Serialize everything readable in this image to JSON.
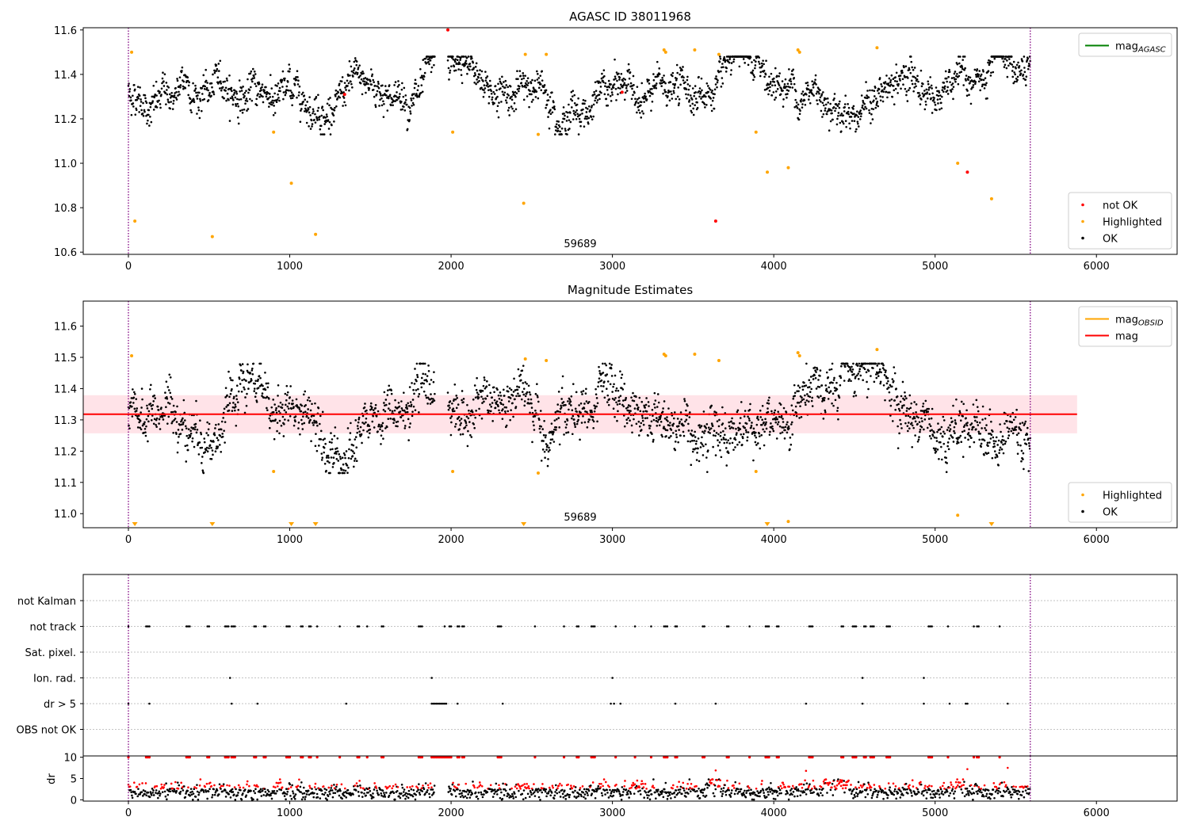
{
  "chart_data": [
    {
      "id": "panel1",
      "type": "scatter",
      "title": "AGASC ID 38011968",
      "x_ticks": [
        0,
        1000,
        2000,
        3000,
        4000,
        5000,
        6000
      ],
      "y_ticks": [
        "10.6",
        "10.8",
        "11.0",
        "11.2",
        "11.4",
        "11.6"
      ],
      "xlim": [
        -280,
        6500
      ],
      "ylim": [
        10.59,
        11.61
      ],
      "annotation": "59689",
      "annotation_x": 2800,
      "vlines": [
        0,
        5590
      ],
      "vline_color": "#800080",
      "top_legend": [
        {
          "label": "mag",
          "sub": "AGASC",
          "color": "#008000"
        }
      ],
      "bottom_legend": [
        {
          "label": "not OK",
          "color": "#ff0000"
        },
        {
          "label": "Highlighted",
          "color": "#ffa500"
        },
        {
          "label": "OK",
          "color": "#000000"
        }
      ],
      "ok_series": {
        "mean": 11.32,
        "spread": 0.08,
        "x_range": [
          0,
          5590
        ],
        "gap": [
          1900,
          1980
        ]
      },
      "highlighted_points": [
        [
          20,
          11.5
        ],
        [
          40,
          10.74
        ],
        [
          520,
          10.67
        ],
        [
          900,
          11.14
        ],
        [
          1010,
          10.91
        ],
        [
          1160,
          10.68
        ],
        [
          2010,
          11.14
        ],
        [
          2450,
          10.82
        ],
        [
          2460,
          11.49
        ],
        [
          2540,
          11.13
        ],
        [
          2590,
          11.49
        ],
        [
          3320,
          11.51
        ],
        [
          3330,
          11.5
        ],
        [
          3510,
          11.51
        ],
        [
          3660,
          11.49
        ],
        [
          3890,
          11.14
        ],
        [
          3960,
          10.96
        ],
        [
          4090,
          10.98
        ],
        [
          4150,
          11.51
        ],
        [
          4160,
          11.5
        ],
        [
          4640,
          11.52
        ],
        [
          5140,
          11.0
        ],
        [
          5350,
          10.84
        ]
      ],
      "not_ok_points": [
        [
          1980,
          11.6
        ],
        [
          1340,
          11.31
        ],
        [
          3060,
          11.32
        ],
        [
          3640,
          10.74
        ],
        [
          5200,
          10.96
        ]
      ]
    },
    {
      "id": "panel2",
      "type": "scatter",
      "title": "Magnitude Estimates",
      "x_ticks": [
        0,
        1000,
        2000,
        3000,
        4000,
        5000,
        6000
      ],
      "y_ticks": [
        "11.0",
        "11.1",
        "11.2",
        "11.3",
        "11.4",
        "11.5",
        "11.6"
      ],
      "xlim": [
        -280,
        6500
      ],
      "ylim": [
        10.955,
        11.68
      ],
      "annotation": "59689",
      "annotation_x": 2800,
      "vlines": [
        0,
        5590
      ],
      "vline_color": "#800080",
      "mag_line": {
        "value": 11.318,
        "color": "#ff0000",
        "x_range": [
          -280,
          5880
        ]
      },
      "band": {
        "low": 11.257,
        "high": 11.379,
        "color": "#ffc0cb",
        "x_range": [
          -280,
          5880
        ]
      },
      "top_legend": [
        {
          "label": "mag",
          "sub": "OBSID",
          "color": "#ffa500"
        },
        {
          "label": "mag",
          "sub": "",
          "color": "#ff0000"
        }
      ],
      "bottom_legend": [
        {
          "label": "Highlighted",
          "color": "#ffa500"
        },
        {
          "label": "OK",
          "color": "#000000"
        }
      ],
      "ok_series": {
        "mean": 11.32,
        "spread": 0.08,
        "x_range": [
          0,
          5590
        ],
        "gap": [
          1900,
          1980
        ]
      },
      "highlighted_points": [
        [
          20,
          11.505
        ],
        [
          900,
          11.135
        ],
        [
          2010,
          11.135
        ],
        [
          2460,
          11.495
        ],
        [
          2540,
          11.13
        ],
        [
          2590,
          11.49
        ],
        [
          3320,
          11.51
        ],
        [
          3330,
          11.505
        ],
        [
          3510,
          11.51
        ],
        [
          3660,
          11.49
        ],
        [
          3890,
          11.135
        ],
        [
          4090,
          10.975
        ],
        [
          4150,
          11.515
        ],
        [
          4160,
          11.505
        ],
        [
          4640,
          11.525
        ],
        [
          5140,
          10.995
        ]
      ],
      "off_scale_markers": [
        40,
        520,
        1010,
        1160,
        2450,
        3960,
        5350
      ]
    },
    {
      "id": "panel3",
      "type": "scatter",
      "x_ticks": [
        0,
        1000,
        2000,
        3000,
        4000,
        5000,
        6000
      ],
      "categories": [
        "not Kalman",
        "not track",
        "Sat. pixel.",
        "Ion. rad.",
        "dr > 5",
        "OBS not OK"
      ],
      "xlim": [
        -280,
        6500
      ],
      "vlines": [
        0,
        5590
      ],
      "vline_color": "#800080",
      "flags": {
        "not track": [
          0,
          110,
          120,
          130,
          360,
          370,
          380,
          490,
          500,
          600,
          610,
          620,
          640,
          650,
          660,
          780,
          790,
          840,
          850,
          980,
          990,
          1000,
          1070,
          1080,
          1120,
          1130,
          1170,
          1310,
          1420,
          1430,
          1480,
          1570,
          1580,
          1800,
          1810,
          1820,
          1960,
          1990,
          2000,
          2040,
          2050,
          2070,
          2080,
          2290,
          2300,
          2310,
          2520,
          2700,
          2780,
          2790,
          2870,
          2880,
          2890,
          3020,
          3140,
          3240,
          3320,
          3330,
          3340,
          3390,
          3400,
          3560,
          3570,
          3710,
          3720,
          3850,
          3950,
          3960,
          3970,
          4020,
          4030,
          4220,
          4230,
          4240,
          4420,
          4430,
          4490,
          4500,
          4510,
          4560,
          4570,
          4600,
          4610,
          4620,
          4700,
          4710,
          4720,
          4960,
          4970,
          4980,
          5080,
          5240,
          5260,
          5270,
          5400
        ],
        "Ion. rad.": [
          630,
          1880,
          3000,
          4550,
          4930
        ],
        "dr > 5": [
          0,
          130,
          640,
          800,
          1350,
          1880,
          1890,
          1900,
          1910,
          1920,
          1930,
          1940,
          1950,
          1960,
          1970,
          2040,
          2320,
          2990,
          3010,
          3050,
          3390,
          3640,
          4200,
          4550,
          4930,
          5090,
          5190,
          5200,
          5450
        ]
      }
    },
    {
      "id": "panel4",
      "type": "scatter",
      "ylabel": "dr",
      "x_ticks": [
        0,
        1000,
        2000,
        3000,
        4000,
        5000,
        6000
      ],
      "y_ticks": [
        "0",
        "5",
        "10"
      ],
      "xlim": [
        -280,
        6500
      ],
      "ylim": [
        -0.3,
        10.3
      ],
      "vlines": [
        0,
        5590
      ],
      "vline_color": "#800080",
      "ok_color": "#000000",
      "flagged_color": "#ff0000",
      "clipped_value": 10,
      "clipped_positions": [
        0,
        110,
        120,
        130,
        360,
        370,
        380,
        490,
        500,
        600,
        610,
        620,
        640,
        650,
        660,
        780,
        790,
        840,
        850,
        980,
        990,
        1000,
        1070,
        1080,
        1120,
        1130,
        1170,
        1310,
        1420,
        1430,
        1480,
        1570,
        1580,
        1800,
        1810,
        1820,
        1880,
        1890,
        1900,
        1910,
        1920,
        1930,
        1940,
        1950,
        1960,
        1970,
        1980,
        1990,
        2000,
        2040,
        2050,
        2070,
        2080,
        2290,
        2300,
        2310,
        2520,
        2700,
        2780,
        2790,
        2870,
        2880,
        2890,
        3020,
        3140,
        3240,
        3320,
        3330,
        3340,
        3390,
        3400,
        3560,
        3570,
        3710,
        3720,
        3850,
        3950,
        3960,
        3970,
        4020,
        4030,
        4220,
        4230,
        4240,
        4420,
        4430,
        4490,
        4500,
        4510,
        4560,
        4570,
        4600,
        4610,
        4620,
        4700,
        4710,
        4720,
        4960,
        4970,
        4980,
        5080,
        5240,
        5260,
        5270,
        5400
      ],
      "outliers": [
        [
          3640,
          6.9
        ],
        [
          4200,
          6.8
        ],
        [
          5200,
          7.2
        ],
        [
          5450,
          7.5
        ]
      ]
    }
  ]
}
